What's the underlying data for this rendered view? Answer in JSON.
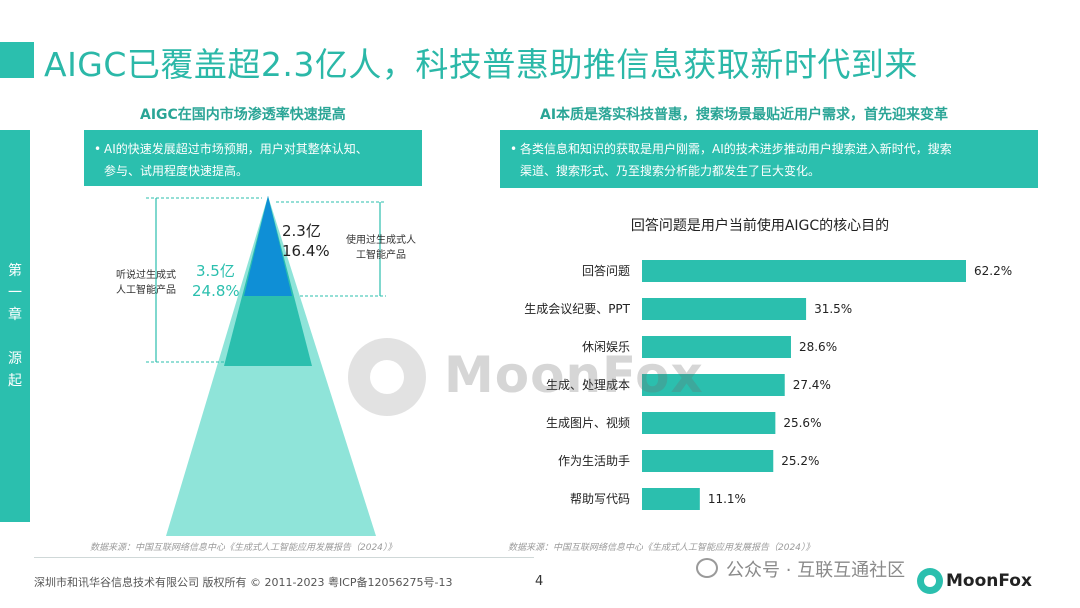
{
  "header": {
    "title": "AIGC已覆盖超2.3亿人，科技普惠助推信息获取新时代到来"
  },
  "chapter": {
    "chars": [
      "第",
      "一",
      "章",
      "源",
      "起"
    ]
  },
  "left": {
    "section_title": "AIGC在国内市场渗透率快速提高",
    "note": {
      "bullet": "•",
      "line1": "AI的快速发展超过市场预期，用户对其整体认知、",
      "line2": "参与、试用程度快速提高。"
    },
    "pyramid": {
      "inner_value": "2.3亿",
      "inner_pct": "16.4%",
      "inner_label_1": "使用过生成式人",
      "inner_label_2": "工智能产品",
      "outer_value": "3.5亿",
      "outer_pct": "24.8%",
      "outer_label_1": "听说过生成式",
      "outer_label_2": "人工智能产品",
      "colors": {
        "tip": "#0f8fd6",
        "mid": "#2bbfae",
        "base": "#8fe4d9"
      }
    },
    "source": "数据来源：中国互联网络信息中心《生成式人工智能应用发展报告（2024）》"
  },
  "right": {
    "section_title": "AI本质是落实科技普惠，搜索场景最贴近用户需求，首先迎来变革",
    "note": {
      "bullet": "•",
      "line1": "各类信息和知识的获取是用户刚需，AI的技术进步推动用户搜索进入新时代，搜索",
      "line2": "渠道、搜索形式、乃至搜索分析能力都发生了巨大变化。"
    },
    "source": "数据来源：中国互联网络信息中心《生成式人工智能应用发展报告（2024）》"
  },
  "chart_data": {
    "type": "bar",
    "orientation": "horizontal",
    "title": "回答问题是用户当前使用AIGC的核心目的",
    "categories": [
      "回答问题",
      "生成会议纪要、PPT",
      "休闲娱乐",
      "生成、处理成本",
      "生成图片、视频",
      "作为生活助手",
      "帮助写代码"
    ],
    "values": [
      62.2,
      31.5,
      28.6,
      27.4,
      25.6,
      25.2,
      11.1
    ],
    "value_labels": [
      "62.2%",
      "31.5%",
      "28.6%",
      "27.4%",
      "25.6%",
      "25.2%",
      "11.1%"
    ],
    "unit": "%",
    "xlim": [
      0,
      62.2
    ],
    "bar_color": "#2bbfae",
    "grid": false,
    "legend": "none"
  },
  "footer": {
    "copyright": "深圳市和讯华谷信息技术有限公司 版权所有 © 2011-2023 粤ICP备12056275号-13",
    "page_number": "4"
  },
  "watermark": {
    "wechat_text": "公众号 · 互联互通社区",
    "logo_text": "MoonFox",
    "big_text": "MoonFox"
  }
}
